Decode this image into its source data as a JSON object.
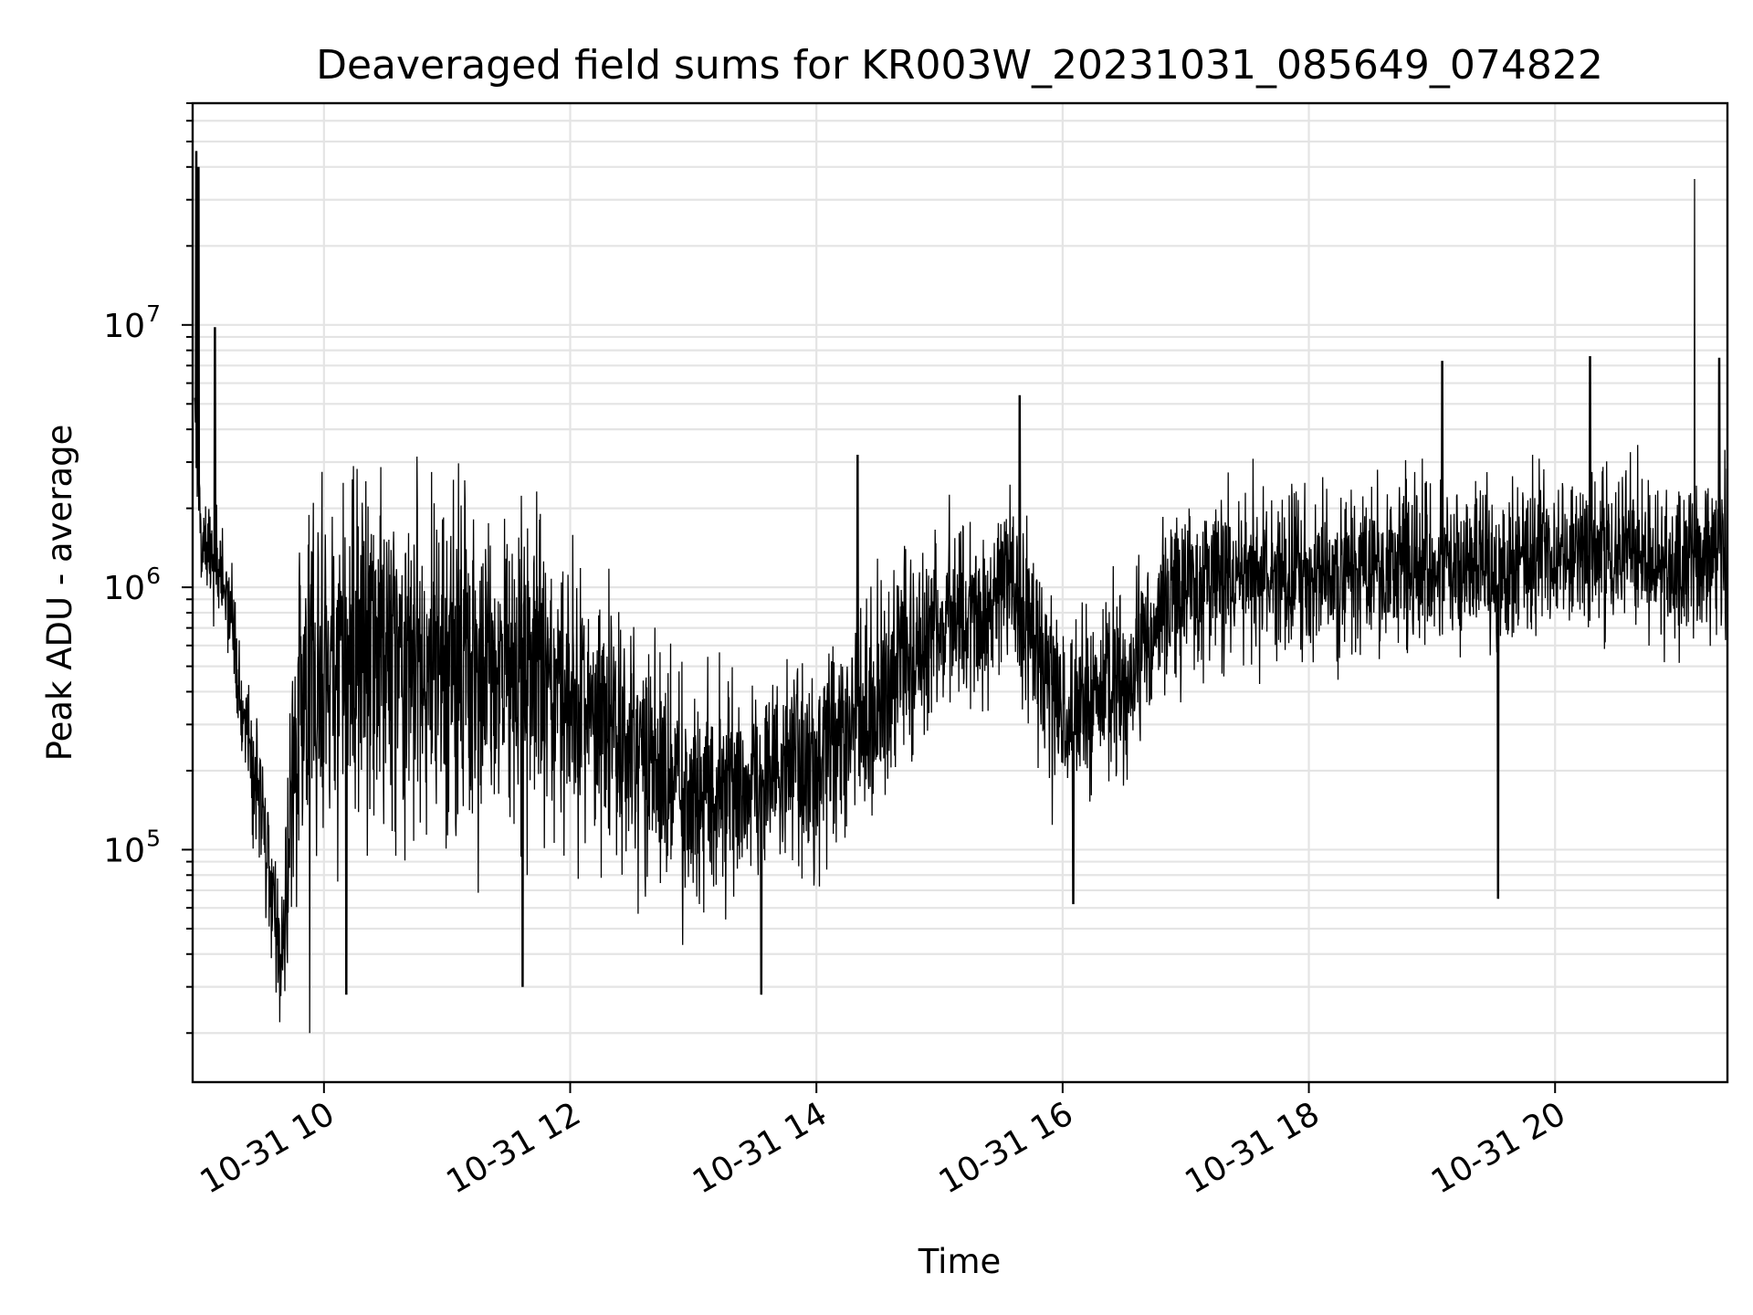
{
  "chart_data": {
    "type": "line",
    "title": "Deaveraged field sums for KR003W_20231031_085649_074822",
    "xlabel": "Time",
    "ylabel": "Peak ADU - average",
    "yscale": "log",
    "ylim": [
      13000,
      70000000
    ],
    "xlim": [
      "2023-10-31 08:56",
      "2023-10-31 21:24"
    ],
    "grid": true,
    "line_color": "#000000",
    "grid_color": "#e4e4e4",
    "x_ticks": [
      {
        "value": "2023-10-31 10:00",
        "label": "10-31 10"
      },
      {
        "value": "2023-10-31 12:00",
        "label": "10-31 12"
      },
      {
        "value": "2023-10-31 14:00",
        "label": "10-31 14"
      },
      {
        "value": "2023-10-31 16:00",
        "label": "10-31 16"
      },
      {
        "value": "2023-10-31 18:00",
        "label": "10-31 18"
      },
      {
        "value": "2023-10-31 20:00",
        "label": "10-31 20"
      }
    ],
    "y_ticks": [
      {
        "value": 100000,
        "base": "10",
        "exp": "5"
      },
      {
        "value": 1000000,
        "base": "10",
        "exp": "6"
      },
      {
        "value": 10000000,
        "base": "10",
        "exp": "7"
      }
    ],
    "series": [
      {
        "envelope": {
          "x": [
            "2023-10-31 08:57",
            "2023-10-31 09:00",
            "2023-10-31 09:05",
            "2023-10-31 09:10",
            "2023-10-31 09:15",
            "2023-10-31 09:20",
            "2023-10-31 09:25",
            "2023-10-31 09:30",
            "2023-10-31 09:35",
            "2023-10-31 09:40",
            "2023-10-31 09:45",
            "2023-10-31 09:50",
            "2023-10-31 09:55",
            "2023-10-31 10:00",
            "2023-10-31 10:15",
            "2023-10-31 10:30",
            "2023-10-31 11:00",
            "2023-10-31 11:30",
            "2023-10-31 11:45",
            "2023-10-31 12:00",
            "2023-10-31 12:30",
            "2023-10-31 13:00",
            "2023-10-31 13:30",
            "2023-10-31 14:00",
            "2023-10-31 14:30",
            "2023-10-31 15:00",
            "2023-10-31 15:30",
            "2023-10-31 15:45",
            "2023-10-31 16:00",
            "2023-10-31 16:30",
            "2023-10-31 17:00",
            "2023-10-31 17:30",
            "2023-10-31 18:00",
            "2023-10-31 18:30",
            "2023-10-31 19:00",
            "2023-10-31 19:30",
            "2023-10-31 20:00",
            "2023-10-31 20:30",
            "2023-10-31 21:00",
            "2023-10-31 21:24"
          ],
          "center": [
            4000000,
            1400000,
            1300000,
            1200000,
            700000,
            320000,
            220000,
            130000,
            60000,
            40000,
            180000,
            350000,
            450000,
            500000,
            500000,
            520000,
            520000,
            520000,
            520000,
            360000,
            250000,
            150000,
            190000,
            200000,
            380000,
            700000,
            1000000,
            650000,
            350000,
            450000,
            1000000,
            1150000,
            1150000,
            1200000,
            1250000,
            1250000,
            1300000,
            1350000,
            1150000,
            1400000
          ],
          "spread": [
            0.25,
            0.25,
            0.25,
            0.3,
            0.3,
            0.3,
            0.35,
            0.4,
            0.45,
            0.5,
            0.75,
            0.85,
            0.9,
            0.95,
            0.95,
            0.95,
            0.95,
            0.9,
            0.85,
            0.7,
            0.6,
            0.6,
            0.55,
            0.55,
            0.55,
            0.5,
            0.5,
            0.55,
            0.5,
            0.5,
            0.45,
            0.45,
            0.45,
            0.45,
            0.45,
            0.45,
            0.4,
            0.4,
            0.45,
            0.45
          ]
        },
        "spikes": [
          {
            "x": "2023-10-31 08:58",
            "y": 46000000
          },
          {
            "x": "2023-10-31 08:59",
            "y": 40000000
          },
          {
            "x": "2023-10-31 09:07",
            "y": 9800000
          },
          {
            "x": "2023-10-31 09:53",
            "y": 20000
          },
          {
            "x": "2023-10-31 10:11",
            "y": 28000
          },
          {
            "x": "2023-10-31 11:37",
            "y": 30000
          },
          {
            "x": "2023-10-31 13:33",
            "y": 28000
          },
          {
            "x": "2023-10-31 14:20",
            "y": 3200000
          },
          {
            "x": "2023-10-31 15:39",
            "y": 5400000
          },
          {
            "x": "2023-10-31 16:05",
            "y": 62000
          },
          {
            "x": "2023-10-31 19:32",
            "y": 65000
          },
          {
            "x": "2023-10-31 19:05",
            "y": 7300000
          },
          {
            "x": "2023-10-31 20:17",
            "y": 7600000
          },
          {
            "x": "2023-10-31 21:08",
            "y": 36000000
          },
          {
            "x": "2023-10-31 21:20",
            "y": 7500000
          }
        ]
      }
    ]
  }
}
